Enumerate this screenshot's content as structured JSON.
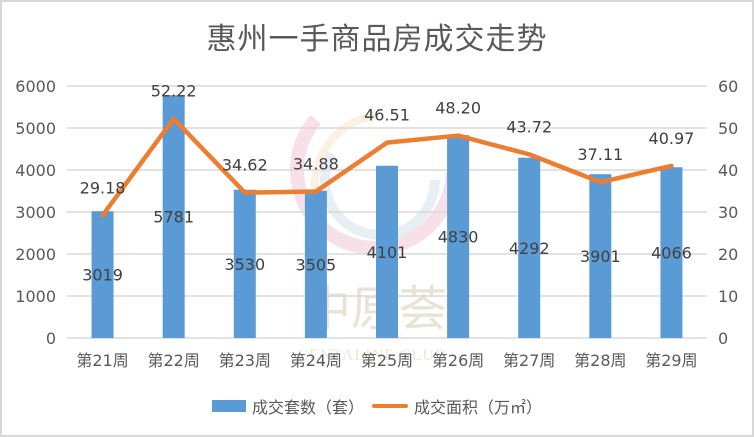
{
  "title": "惠州一手商品房成交走势",
  "colors": {
    "bar": "#5b9bd5",
    "line": "#ed7d31",
    "grid": "#d9d9d9",
    "text": "#595959"
  },
  "legend": {
    "bar_label": "成交套数（套）",
    "line_label": "成交面积（万㎡）"
  },
  "watermark": {
    "text": "中原荟",
    "subtext": "CENTALINE CLUB"
  },
  "chart_data": {
    "type": "bar",
    "title": "惠州一手商品房成交走势",
    "categories": [
      "第21周",
      "第22周",
      "第23周",
      "第24周",
      "第25周",
      "第26周",
      "第27周",
      "第28周",
      "第29周"
    ],
    "series": [
      {
        "name": "成交套数（套）",
        "type": "bar",
        "axis": "left",
        "values": [
          3019,
          5781,
          3530,
          3505,
          4101,
          4830,
          4292,
          3901,
          4066
        ]
      },
      {
        "name": "成交面积（万㎡）",
        "type": "line",
        "axis": "right",
        "values": [
          29.18,
          52.22,
          34.62,
          34.88,
          46.51,
          48.2,
          43.72,
          37.11,
          40.97
        ],
        "labels": [
          "29.18",
          "52.22",
          "34.62",
          "34.88",
          "46.51",
          "48.20",
          "43.72",
          "37.11",
          "40.97"
        ]
      }
    ],
    "y_left": {
      "ylim": [
        0,
        6000
      ],
      "ticks": [
        "0",
        "1000",
        "2000",
        "3000",
        "4000",
        "5000",
        "6000"
      ]
    },
    "y_right": {
      "ylim": [
        0,
        60
      ],
      "ticks": [
        "0",
        "10",
        "20",
        "30",
        "40",
        "50",
        "60"
      ]
    },
    "xlabel": "",
    "ylabel": "",
    "grid": true,
    "legend_position": "bottom"
  }
}
